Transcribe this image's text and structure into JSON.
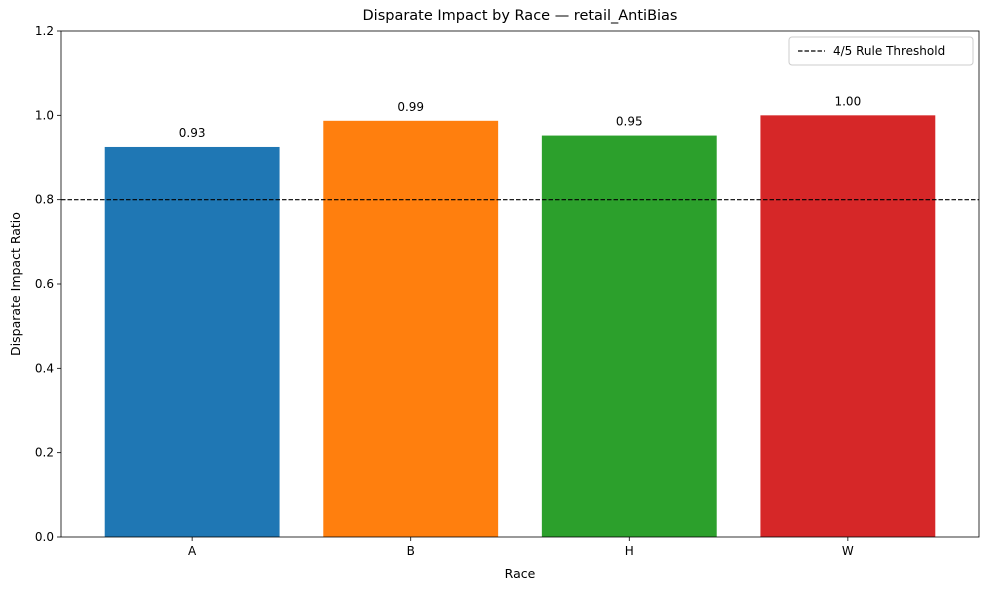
{
  "chart_data": {
    "type": "bar",
    "title": "Disparate Impact by Race — retail_AntiBias",
    "xlabel": "Race",
    "ylabel": "Disparate Impact Ratio",
    "categories": [
      "A",
      "B",
      "H",
      "W"
    ],
    "values": [
      0.925,
      0.987,
      0.952,
      1.0
    ],
    "data_labels": [
      "0.93",
      "0.99",
      "0.95",
      "1.00"
    ],
    "colors": [
      "#1f77b4",
      "#ff7f0e",
      "#2ca02c",
      "#d62728"
    ],
    "ylim": [
      0,
      1.2
    ],
    "yticks": [
      0.0,
      0.2,
      0.4,
      0.6,
      0.8,
      1.0,
      1.2
    ],
    "ytick_labels": [
      "0.0",
      "0.2",
      "0.4",
      "0.6",
      "0.8",
      "1.0",
      "1.2"
    ],
    "threshold": {
      "value": 0.8,
      "label": "4/5 Rule Threshold",
      "color": "#000000",
      "style": "dashed"
    },
    "legend": {
      "placement": "top-right"
    },
    "grid": false
  }
}
